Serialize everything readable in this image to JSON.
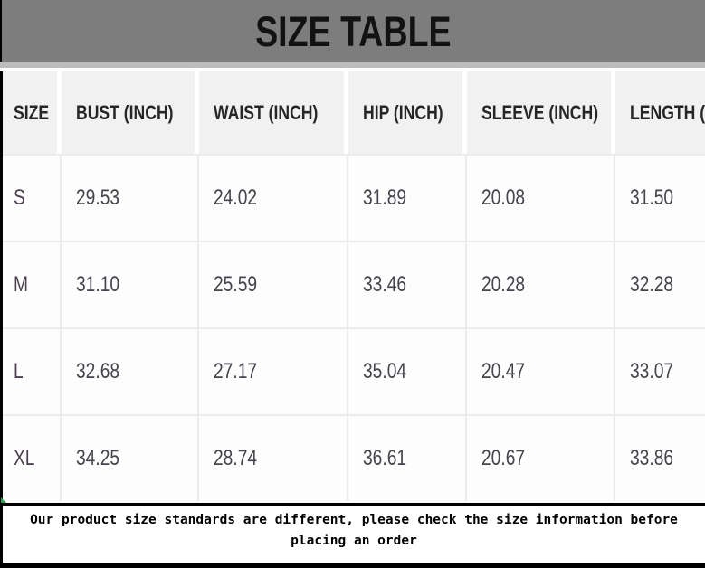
{
  "title": "SIZE TABLE",
  "chart_data": {
    "type": "table",
    "title": "SIZE TABLE",
    "columns": [
      "SIZE",
      "BUST (INCH)",
      "WAIST (INCH)",
      "HIP (INCH)",
      "SLEEVE (INCH)",
      "LENGTH (INCH)"
    ],
    "rows": [
      [
        "S",
        "29.53",
        "24.02",
        "31.89",
        "20.08",
        "31.50"
      ],
      [
        "M",
        "31.10",
        "25.59",
        "33.46",
        "20.28",
        "32.28"
      ],
      [
        "L",
        "32.68",
        "27.17",
        "35.04",
        "20.47",
        "33.07"
      ],
      [
        "XL",
        "34.25",
        "28.74",
        "36.61",
        "20.67",
        "33.86"
      ]
    ],
    "units": "inches",
    "note": "Last column header is clipped at the right edge of the image, showing only 'LENGTH (I'"
  },
  "footer": {
    "line1": "Our product size standards are different, please check the size information before",
    "line2": "placing an order"
  },
  "colors": {
    "title_bar": "#7d7d7d",
    "title_strip": "#bcbcbc",
    "header_bg": "#f1f1f1",
    "grid_line": "#ececec",
    "value_text": "#45434c",
    "border_black": "#000000",
    "artifact_green": "#2e9e4f"
  }
}
